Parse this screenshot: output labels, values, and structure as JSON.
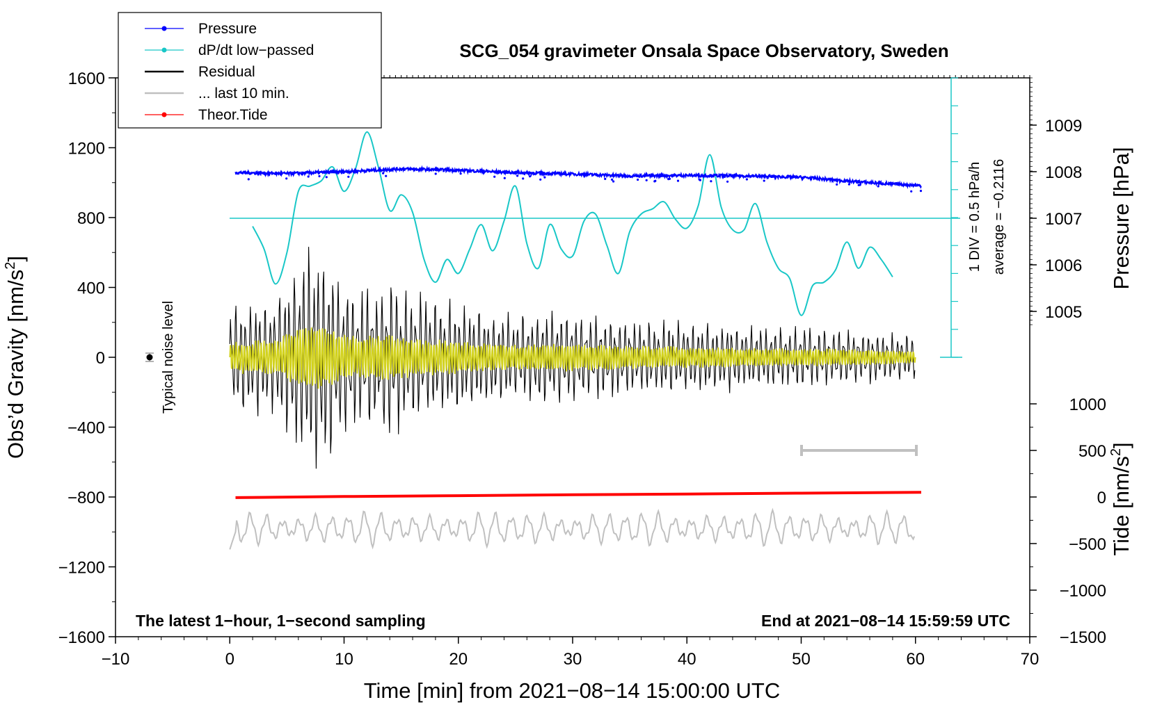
{
  "chart_data": {
    "type": "line",
    "title": "SCG_054 gravimeter Onsala Space Observatory, Sweden",
    "xlabel": "Time [min] from 2021−08−14 15:00:00 UTC",
    "ylabel_left": "Obs’d Gravity [nm/s",
    "ylabel_left_suffix": "]",
    "ylabel_sup": "2",
    "ylabel_right_pressure": "Pressure [hPa]",
    "ylabel_right_tide": "Tide [nm/s",
    "ylabel_right_tide_suffix": "]",
    "xlim": [
      -10,
      70
    ],
    "ylim": [
      -1600,
      1600
    ],
    "x_ticks": [
      -10,
      0,
      10,
      20,
      30,
      40,
      50,
      60,
      70
    ],
    "x_tick_labels": [
      "−10",
      "0",
      "10",
      "20",
      "30",
      "40",
      "50",
      "60",
      "70"
    ],
    "y_ticks": [
      1600,
      1200,
      800,
      400,
      0,
      -400,
      -800,
      -1200,
      -1600
    ],
    "y_tick_labels": [
      "1600",
      "1200",
      "800",
      "400",
      "0",
      "−400",
      "−800",
      "−1200",
      "−1600"
    ],
    "pressure_ticks": [
      1009,
      1008,
      1007,
      1006,
      1005
    ],
    "pressure_tick_labels": [
      "1009",
      "1008",
      "1007",
      "1006",
      "1005"
    ],
    "tide_ticks": [
      1000,
      500,
      0,
      -500,
      -1000,
      -1500
    ],
    "tide_tick_labels": [
      "1000",
      "500",
      "0",
      "−500",
      "−1000",
      "−1500"
    ],
    "legend": {
      "position": "top-left",
      "entries": [
        {
          "label": "Pressure",
          "color": "#0000ff",
          "marker": true
        },
        {
          "label": "dP/dt low−passed",
          "color": "#19c7c7",
          "marker": true
        },
        {
          "label": "Residual",
          "color": "#000000",
          "marker": false
        },
        {
          "label": "... last 10 min.",
          "color": "#c0c0c0",
          "marker": false
        },
        {
          "label": "Theor.Tide",
          "color": "#ff0000",
          "marker": true
        }
      ]
    },
    "annotations": {
      "noise_label": "Typical noise level",
      "div_label": "1 DIV = 0.5 hPa/h",
      "average_label": "average = −0.2116",
      "bottom_left": "The latest 1−hour, 1−second sampling",
      "bottom_right": "End at 2021−08−14 15:59:59 UTC"
    },
    "series": [
      {
        "name": "Pressure",
        "unit": "hPa",
        "color": "#0000ff",
        "x": [
          0.5,
          5,
          10,
          15,
          20,
          25,
          30,
          35,
          40,
          45,
          50,
          55,
          60.5
        ],
        "values": [
          1007.98,
          1007.96,
          1008.0,
          1008.06,
          1008.03,
          1007.98,
          1007.95,
          1007.91,
          1007.92,
          1007.91,
          1007.88,
          1007.78,
          1007.7
        ]
      },
      {
        "name": "dP/dt low−passed",
        "unit": "nm/s2 display scale",
        "color": "#19c7c7",
        "x": [
          2,
          3,
          4,
          5,
          6,
          7,
          8,
          9,
          10,
          11,
          12,
          13,
          14,
          15,
          16,
          17,
          18,
          19,
          20,
          21,
          22,
          23,
          24,
          25,
          26,
          27,
          28,
          29,
          30,
          31,
          32,
          33,
          34,
          35,
          36,
          37,
          38,
          39,
          40,
          41,
          42,
          43,
          44,
          45,
          46,
          47,
          48,
          49,
          50,
          51,
          52,
          53,
          54,
          55,
          56,
          57,
          58
        ],
        "values": [
          750,
          620,
          420,
          600,
          950,
          980,
          1010,
          1090,
          950,
          1080,
          1290,
          1090,
          840,
          930,
          830,
          560,
          430,
          560,
          480,
          620,
          760,
          610,
          780,
          980,
          650,
          510,
          760,
          620,
          580,
          780,
          820,
          640,
          480,
          720,
          820,
          850,
          890,
          790,
          740,
          870,
          1160,
          860,
          730,
          730,
          880,
          660,
          510,
          450,
          240,
          410,
          430,
          500,
          660,
          510,
          630,
          560,
          460
        ]
      },
      {
        "name": "Residual",
        "unit": "nm/s2",
        "color": "#000000",
        "x": [
          0,
          4,
          6.5,
          8,
          10,
          12,
          14,
          16,
          20,
          25,
          30,
          35,
          40,
          45,
          50,
          55,
          60
        ],
        "values": [
          -300,
          320,
          -640,
          650,
          420,
          -390,
          440,
          -350,
          300,
          -240,
          260,
          -210,
          200,
          -180,
          170,
          -150,
          120
        ]
      },
      {
        "name": "... last 10 min.",
        "unit": "nm/s2",
        "color": "#c0c0c0",
        "x_start": 50,
        "x_end": 60
      },
      {
        "name": "Theor.Tide",
        "unit": "nm/s2",
        "color": "#ff0000",
        "x": [
          0.5,
          10,
          20,
          30,
          40,
          50,
          60.5
        ],
        "values": [
          -7,
          5,
          14,
          24,
          32,
          41,
          50
        ]
      }
    ]
  }
}
